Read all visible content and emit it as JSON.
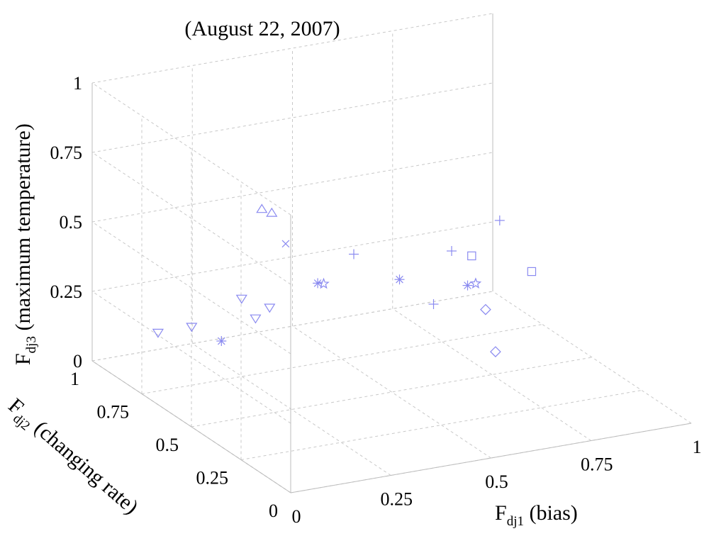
{
  "chart_data": {
    "type": "scatter",
    "projection": "3d",
    "title": "(August 22, 2007)",
    "xlabel": {
      "main": "F",
      "sub": "dj1",
      "rest": " (bias)"
    },
    "ylabel": {
      "main": "F",
      "sub": "dj2",
      "rest": " (changing rate)"
    },
    "zlabel": {
      "main": "F",
      "sub": "dj3",
      "rest": " (maximum temperature)"
    },
    "xlim": [
      0,
      1
    ],
    "ylim": [
      0,
      1
    ],
    "zlim": [
      0,
      1
    ],
    "xticks": [
      "0",
      "0.25",
      "0.5",
      "0.75",
      "1"
    ],
    "yticks": [
      "0",
      "0.25",
      "0.5",
      "0.75",
      "1"
    ],
    "zticks": [
      "0",
      "0.25",
      "0.5",
      "0.75",
      "1"
    ],
    "grid": true,
    "marker_color": "#8a8af0",
    "points": [
      {
        "marker": "triangle-down",
        "x": 0.05,
        "y": 0.6,
        "z": 0.3
      },
      {
        "marker": "triangle-down",
        "x": 0.09,
        "y": 0.85,
        "z": 0.15
      },
      {
        "marker": "triangle-down",
        "x": 0.15,
        "y": 0.55,
        "z": 0.4
      },
      {
        "marker": "triangle-down",
        "x": 0.16,
        "y": 0.5,
        "z": 0.35
      },
      {
        "marker": "triangle-down",
        "x": 0.22,
        "y": 0.55,
        "z": 0.35
      },
      {
        "marker": "triangle-up",
        "x": 0.25,
        "y": 0.65,
        "z": 0.65
      },
      {
        "marker": "triangle-up",
        "x": 0.25,
        "y": 0.6,
        "z": 0.66
      },
      {
        "marker": "x",
        "x": 0.26,
        "y": 0.55,
        "z": 0.57
      },
      {
        "marker": "asterisk",
        "x": 0.05,
        "y": 0.45,
        "z": 0.32
      },
      {
        "marker": "asterisk",
        "x": 0.33,
        "y": 0.53,
        "z": 0.42
      },
      {
        "marker": "asterisk",
        "x": 0.47,
        "y": 0.4,
        "z": 0.46
      },
      {
        "marker": "asterisk",
        "x": 0.62,
        "y": 0.36,
        "z": 0.42
      },
      {
        "marker": "pentagram",
        "x": 0.34,
        "y": 0.52,
        "z": 0.42
      },
      {
        "marker": "pentagram",
        "x": 0.65,
        "y": 0.38,
        "z": 0.41
      },
      {
        "marker": "plus",
        "x": 0.43,
        "y": 0.55,
        "z": 0.49
      },
      {
        "marker": "plus",
        "x": 0.53,
        "y": 0.35,
        "z": 0.38
      },
      {
        "marker": "plus",
        "x": 0.6,
        "y": 0.4,
        "z": 0.53
      },
      {
        "marker": "plus",
        "x": 0.72,
        "y": 0.4,
        "z": 0.61
      },
      {
        "marker": "square",
        "x": 0.65,
        "y": 0.4,
        "z": 0.5
      },
      {
        "marker": "square",
        "x": 0.78,
        "y": 0.36,
        "z": 0.43
      },
      {
        "marker": "diamond",
        "x": 0.65,
        "y": 0.33,
        "z": 0.34
      },
      {
        "marker": "diamond",
        "x": 0.66,
        "y": 0.3,
        "z": 0.2
      }
    ]
  }
}
